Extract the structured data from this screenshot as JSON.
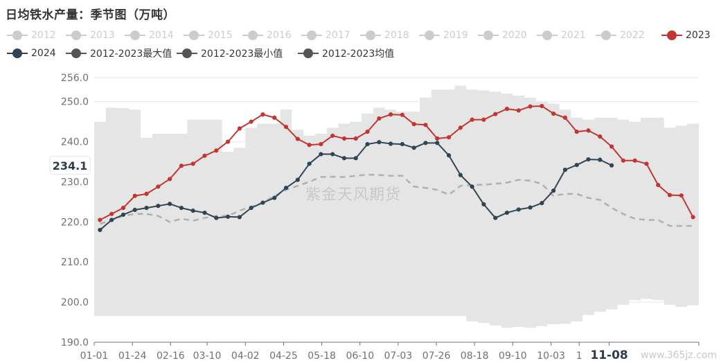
{
  "title": "日均铁水产量：季节图（万吨）",
  "watermark": "紫金天风期货",
  "footer_badge": "www.365jz.com",
  "colors": {
    "band": "#e5e5e5",
    "avg": "#b0b0b0",
    "s2023": "#c23531",
    "s2024": "#2f4554",
    "inactive": "#cccccc",
    "axis": "#6e7079",
    "grid": "#e0e6f1",
    "tooltip_label_color": "#333333"
  },
  "legend": [
    {
      "name": "2012",
      "color": "#cccccc",
      "active": false,
      "icon": "line-circle"
    },
    {
      "name": "2013",
      "color": "#cccccc",
      "active": false,
      "icon": "line-circle"
    },
    {
      "name": "2014",
      "color": "#cccccc",
      "active": false,
      "icon": "line-circle"
    },
    {
      "name": "2015",
      "color": "#cccccc",
      "active": false,
      "icon": "line-circle"
    },
    {
      "name": "2016",
      "color": "#cccccc",
      "active": false,
      "icon": "line-circle"
    },
    {
      "name": "2017",
      "color": "#cccccc",
      "active": false,
      "icon": "line-circle"
    },
    {
      "name": "2018",
      "color": "#cccccc",
      "active": false,
      "icon": "line-circle"
    },
    {
      "name": "2019",
      "color": "#cccccc",
      "active": false,
      "icon": "line-circle"
    },
    {
      "name": "2020",
      "color": "#cccccc",
      "active": false,
      "icon": "line-circle"
    },
    {
      "name": "2021",
      "color": "#cccccc",
      "active": false,
      "icon": "line-circle"
    },
    {
      "name": "2022",
      "color": "#cccccc",
      "active": false,
      "icon": "line-circle"
    },
    {
      "name": "2023",
      "color": "#c23531",
      "active": true,
      "icon": "line-circle"
    },
    {
      "name": "2024",
      "color": "#2f4554",
      "active": true,
      "icon": "line-circle"
    },
    {
      "name": "2012-2023最大值",
      "color": "#555555",
      "active": true,
      "icon": "line-circle"
    },
    {
      "name": "2012-2023最小值",
      "color": "#555555",
      "active": true,
      "icon": "line-circle"
    },
    {
      "name": "2012-2023均值",
      "color": "#555555",
      "active": true,
      "icon": "line-circle"
    }
  ],
  "chart_data": {
    "type": "line",
    "title": "日均铁水产量：季节图（万吨）",
    "ylim": [
      190,
      256
    ],
    "yticks": [
      "190.0",
      "200.0",
      "210.0",
      "220.0",
      "230.0",
      "240.0",
      "250.0",
      "256.0"
    ],
    "ytick_values": [
      190,
      200,
      210,
      220,
      230,
      240,
      250,
      256
    ],
    "xlim": [
      0,
      52
    ],
    "xticks": [
      {
        "pos": 0,
        "label": "01-01"
      },
      {
        "pos": 3.29,
        "label": "01-24"
      },
      {
        "pos": 6.57,
        "label": "02-16"
      },
      {
        "pos": 9.71,
        "label": "03-10"
      },
      {
        "pos": 13,
        "label": "04-02"
      },
      {
        "pos": 16.29,
        "label": "04-25"
      },
      {
        "pos": 19.57,
        "label": "05-18"
      },
      {
        "pos": 22.86,
        "label": "06-10"
      },
      {
        "pos": 26.14,
        "label": "07-03"
      },
      {
        "pos": 29.43,
        "label": "07-26"
      },
      {
        "pos": 32.71,
        "label": "08-18"
      },
      {
        "pos": 36,
        "label": "09-10"
      },
      {
        "pos": 39.29,
        "label": "10-03"
      },
      {
        "pos": 41.71,
        "label": "1"
      },
      {
        "pos": 44.29,
        "label": "11-08",
        "highlight": true
      }
    ],
    "pointer_y_label": "234.1",
    "pointer_y_value": 234.1,
    "grid": true,
    "legend_position": "top",
    "band": {
      "name": "2012-2023最大值 / 2012-2023最小值",
      "upper": [
        245,
        248.5,
        248.4,
        248,
        241,
        242,
        242,
        242,
        245.5,
        245.5,
        245.5,
        237.5,
        238.5,
        243.5,
        244.5,
        244.5,
        248,
        243,
        241.5,
        242,
        243.5,
        244.5,
        245,
        247,
        248.5,
        248,
        247.5,
        247.5,
        251,
        253,
        253,
        254,
        253,
        252.8,
        252.5,
        252,
        251.5,
        251,
        250,
        249.5,
        248,
        246,
        245.5,
        246,
        246,
        245.5,
        245,
        246,
        246,
        243.5,
        244,
        244.5
      ],
      "lower": [
        196.5,
        196.5,
        196.5,
        196.5,
        196.5,
        196.5,
        196.5,
        196.5,
        196.5,
        196.5,
        196.5,
        196.5,
        196.5,
        196.5,
        196.5,
        196.5,
        196.5,
        196.5,
        196.5,
        196.5,
        196.5,
        196.5,
        196.5,
        196.5,
        196.5,
        196.5,
        196.5,
        196.5,
        196.5,
        196.5,
        196.5,
        196.5,
        195.2,
        194.8,
        194.2,
        193.6,
        193.8,
        193.6,
        194.0,
        194.5,
        194.6,
        195.2,
        196.8,
        197.6,
        198.2,
        199.3,
        200.5,
        200.8,
        200.5,
        199.3,
        198.8,
        199.2
      ]
    },
    "series": [
      {
        "name": "2012-2023均值",
        "style": "dashed",
        "color": "#b0b0b0",
        "values": [
          219.5,
          220.5,
          221.5,
          222,
          222,
          221.5,
          220,
          220.8,
          220.3,
          221,
          221.5,
          221.5,
          222.8,
          223.8,
          224.8,
          226.5,
          228,
          229,
          230,
          231.2,
          231.3,
          231.2,
          231.5,
          231.8,
          231.7,
          231.5,
          231.5,
          228.8,
          228.5,
          228,
          226.8,
          229,
          229.2,
          229.3,
          229.5,
          229.8,
          230.5,
          230.3,
          229.5,
          226.5,
          227,
          227,
          226,
          225.5,
          223.5,
          222,
          220.8,
          220.5,
          220.5,
          219,
          219,
          219
        ]
      },
      {
        "name": "2023",
        "color": "#c23531",
        "values": [
          220.5,
          222,
          223.5,
          226.5,
          227,
          228.8,
          230.7,
          234,
          234.5,
          236.5,
          237.8,
          240,
          243.3,
          245,
          246.8,
          246,
          243.7,
          240.7,
          239.2,
          239.4,
          241.5,
          240.8,
          240.8,
          242.5,
          245.8,
          246.8,
          246.7,
          244.4,
          244.2,
          240.8,
          241.1,
          243.5,
          245.5,
          245.5,
          246.9,
          248.2,
          247.8,
          248.8,
          248.9,
          247.0,
          246.0,
          242.5,
          242.8,
          241.3,
          238.8,
          235.3,
          235.3,
          234.5,
          229.2,
          226.7,
          226.6,
          221.2
        ]
      },
      {
        "name": "2024",
        "color": "#2f4554",
        "values": [
          218,
          220.5,
          221.8,
          223,
          223.5,
          224,
          224.5,
          223.5,
          222.8,
          222.3,
          221,
          221.3,
          221.2,
          223.5,
          224.8,
          226,
          228.5,
          230.5,
          234.5,
          236.9,
          236.9,
          235.9,
          235.9,
          239.4,
          239.9,
          239.5,
          239.4,
          238.5,
          239.7,
          239.7,
          236.6,
          231.7,
          228.8,
          224.4,
          221,
          222.3,
          223.1,
          223.6,
          224.7,
          227.8,
          233,
          234.2,
          235.6,
          235.5,
          234.1
        ]
      }
    ]
  }
}
